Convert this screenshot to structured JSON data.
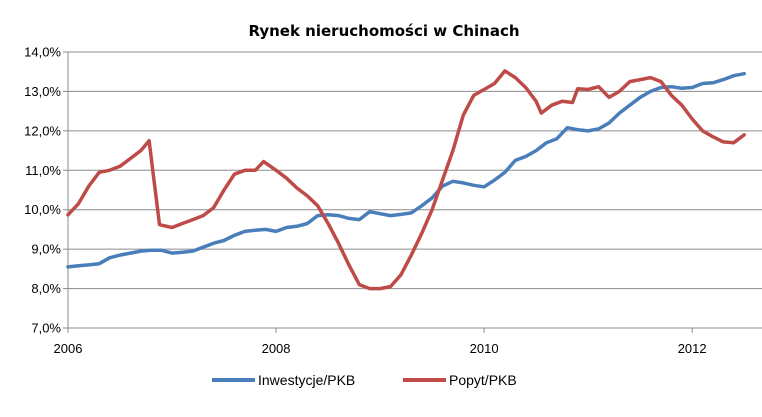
{
  "chart_data": {
    "type": "line",
    "title": "Rynek nieruchomości w Chinach",
    "xlabel": "",
    "ylabel": "",
    "xlim": [
      2006,
      2012.7
    ],
    "ylim": [
      7,
      14
    ],
    "x_ticks": [
      2006,
      2008,
      2010,
      2012
    ],
    "x_tick_labels": [
      "2006",
      "2008",
      "2010",
      "2012"
    ],
    "y_ticks": [
      7,
      8,
      9,
      10,
      11,
      12,
      13,
      14
    ],
    "y_tick_labels": [
      "7,0%",
      "8,0%",
      "9,0%",
      "10,0%",
      "11,0%",
      "12,0%",
      "13,0%",
      "14,0%"
    ],
    "grid": "horizontal",
    "legend_position": "bottom",
    "colors": {
      "Inwestycje/PKB": "#4a7ebb",
      "Popyt/PKB": "#be4b48"
    },
    "series": [
      {
        "name": "Inwestycje/PKB",
        "points": [
          [
            2006.0,
            8.55
          ],
          [
            2006.1,
            8.58
          ],
          [
            2006.2,
            8.6
          ],
          [
            2006.3,
            8.63
          ],
          [
            2006.4,
            8.78
          ],
          [
            2006.5,
            8.85
          ],
          [
            2006.6,
            8.9
          ],
          [
            2006.7,
            8.95
          ],
          [
            2006.8,
            8.97
          ],
          [
            2006.9,
            8.97
          ],
          [
            2007.0,
            8.9
          ],
          [
            2007.1,
            8.92
          ],
          [
            2007.2,
            8.95
          ],
          [
            2007.3,
            9.05
          ],
          [
            2007.4,
            9.15
          ],
          [
            2007.5,
            9.22
          ],
          [
            2007.6,
            9.35
          ],
          [
            2007.7,
            9.45
          ],
          [
            2007.8,
            9.48
          ],
          [
            2007.9,
            9.5
          ],
          [
            2008.0,
            9.45
          ],
          [
            2008.1,
            9.55
          ],
          [
            2008.2,
            9.58
          ],
          [
            2008.3,
            9.65
          ],
          [
            2008.4,
            9.85
          ],
          [
            2008.5,
            9.87
          ],
          [
            2008.6,
            9.85
          ],
          [
            2008.7,
            9.78
          ],
          [
            2008.8,
            9.75
          ],
          [
            2008.9,
            9.95
          ],
          [
            2009.0,
            9.9
          ],
          [
            2009.1,
            9.85
          ],
          [
            2009.2,
            9.88
          ],
          [
            2009.3,
            9.92
          ],
          [
            2009.4,
            10.1
          ],
          [
            2009.5,
            10.3
          ],
          [
            2009.6,
            10.6
          ],
          [
            2009.7,
            10.72
          ],
          [
            2009.8,
            10.68
          ],
          [
            2009.9,
            10.62
          ],
          [
            2010.0,
            10.58
          ],
          [
            2010.1,
            10.75
          ],
          [
            2010.2,
            10.95
          ],
          [
            2010.3,
            11.25
          ],
          [
            2010.4,
            11.35
          ],
          [
            2010.5,
            11.5
          ],
          [
            2010.6,
            11.7
          ],
          [
            2010.7,
            11.8
          ],
          [
            2010.8,
            12.08
          ],
          [
            2010.9,
            12.03
          ],
          [
            2011.0,
            12.0
          ],
          [
            2011.1,
            12.05
          ],
          [
            2011.2,
            12.2
          ],
          [
            2011.3,
            12.45
          ],
          [
            2011.4,
            12.65
          ],
          [
            2011.5,
            12.85
          ],
          [
            2011.6,
            13.0
          ],
          [
            2011.7,
            13.1
          ],
          [
            2011.8,
            13.12
          ],
          [
            2011.9,
            13.08
          ],
          [
            2012.0,
            13.1
          ],
          [
            2012.1,
            13.2
          ],
          [
            2012.2,
            13.22
          ],
          [
            2012.3,
            13.3
          ],
          [
            2012.4,
            13.4
          ],
          [
            2012.5,
            13.45
          ]
        ]
      },
      {
        "name": "Popyt/PKB",
        "points": [
          [
            2006.0,
            9.87
          ],
          [
            2006.1,
            10.15
          ],
          [
            2006.2,
            10.6
          ],
          [
            2006.3,
            10.95
          ],
          [
            2006.4,
            11.0
          ],
          [
            2006.5,
            11.1
          ],
          [
            2006.6,
            11.3
          ],
          [
            2006.7,
            11.5
          ],
          [
            2006.78,
            11.75
          ],
          [
            2006.88,
            9.62
          ],
          [
            2007.0,
            9.55
          ],
          [
            2007.1,
            9.65
          ],
          [
            2007.2,
            9.75
          ],
          [
            2007.3,
            9.85
          ],
          [
            2007.4,
            10.05
          ],
          [
            2007.5,
            10.5
          ],
          [
            2007.6,
            10.9
          ],
          [
            2007.7,
            11.0
          ],
          [
            2007.8,
            11.0
          ],
          [
            2007.88,
            11.22
          ],
          [
            2008.0,
            11.0
          ],
          [
            2008.1,
            10.8
          ],
          [
            2008.2,
            10.55
          ],
          [
            2008.3,
            10.35
          ],
          [
            2008.4,
            10.1
          ],
          [
            2008.5,
            9.65
          ],
          [
            2008.6,
            9.15
          ],
          [
            2008.7,
            8.6
          ],
          [
            2008.8,
            8.1
          ],
          [
            2008.9,
            8.0
          ],
          [
            2009.0,
            8.0
          ],
          [
            2009.1,
            8.05
          ],
          [
            2009.2,
            8.35
          ],
          [
            2009.3,
            8.85
          ],
          [
            2009.4,
            9.4
          ],
          [
            2009.5,
            10.0
          ],
          [
            2009.6,
            10.75
          ],
          [
            2009.7,
            11.5
          ],
          [
            2009.8,
            12.4
          ],
          [
            2009.9,
            12.9
          ],
          [
            2010.0,
            13.05
          ],
          [
            2010.1,
            13.2
          ],
          [
            2010.2,
            13.52
          ],
          [
            2010.3,
            13.35
          ],
          [
            2010.4,
            13.1
          ],
          [
            2010.5,
            12.75
          ],
          [
            2010.55,
            12.45
          ],
          [
            2010.65,
            12.65
          ],
          [
            2010.75,
            12.75
          ],
          [
            2010.85,
            12.72
          ],
          [
            2010.9,
            13.07
          ],
          [
            2011.0,
            13.05
          ],
          [
            2011.1,
            13.12
          ],
          [
            2011.2,
            12.85
          ],
          [
            2011.3,
            13.0
          ],
          [
            2011.4,
            13.25
          ],
          [
            2011.5,
            13.3
          ],
          [
            2011.6,
            13.35
          ],
          [
            2011.7,
            13.25
          ],
          [
            2011.8,
            12.9
          ],
          [
            2011.9,
            12.65
          ],
          [
            2012.0,
            12.3
          ],
          [
            2012.1,
            12.0
          ],
          [
            2012.2,
            11.85
          ],
          [
            2012.3,
            11.72
          ],
          [
            2012.4,
            11.7
          ],
          [
            2012.5,
            11.9
          ]
        ]
      }
    ]
  }
}
